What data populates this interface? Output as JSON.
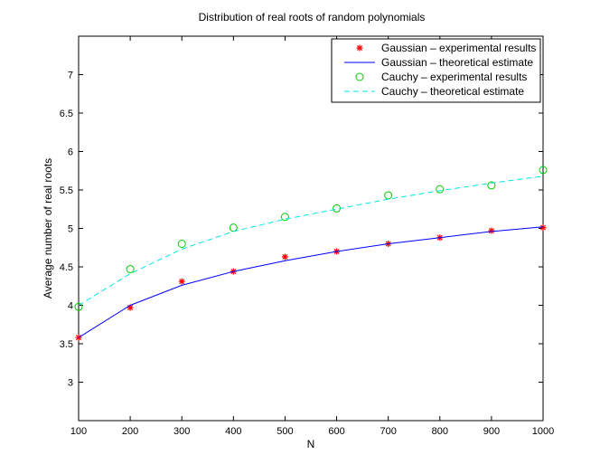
{
  "chart_data": {
    "type": "line",
    "title": "Distribution of real roots of random polynomials",
    "xlabel": "N",
    "ylabel": "Average number of real roots",
    "xlim": [
      100,
      1000
    ],
    "ylim": [
      2.5,
      7.5
    ],
    "xticks": [
      "100",
      "200",
      "300",
      "400",
      "500",
      "600",
      "700",
      "800",
      "900",
      "1000"
    ],
    "yticks": [
      "3",
      "3.5",
      "4",
      "4.5",
      "5",
      "5.5",
      "6",
      "6.5",
      "7"
    ],
    "grid": false,
    "legend_position": "top-right",
    "x": [
      100,
      200,
      300,
      400,
      500,
      600,
      700,
      800,
      900,
      1000
    ],
    "series": [
      {
        "name": "Gaussian – experimental results",
        "style": "marker-star",
        "color": "#ff0000",
        "values": [
          3.58,
          3.97,
          4.31,
          4.44,
          4.63,
          4.7,
          4.8,
          4.88,
          4.97,
          5.01
        ]
      },
      {
        "name": "Gaussian – theoretical estimate",
        "style": "line-solid",
        "color": "#0000ff",
        "values": [
          3.58,
          4.0,
          4.26,
          4.44,
          4.58,
          4.7,
          4.8,
          4.88,
          4.96,
          5.02
        ]
      },
      {
        "name": "Cauchy – experimental results",
        "style": "marker-circle",
        "color": "#00cc00",
        "values": [
          3.98,
          4.47,
          4.8,
          5.01,
          5.15,
          5.26,
          5.43,
          5.51,
          5.56,
          5.76
        ]
      },
      {
        "name": "Cauchy – theoretical estimate",
        "style": "line-dashed",
        "color": "#00e5e5",
        "values": [
          4.0,
          4.41,
          4.73,
          4.96,
          5.12,
          5.25,
          5.38,
          5.49,
          5.59,
          5.68
        ]
      }
    ]
  }
}
